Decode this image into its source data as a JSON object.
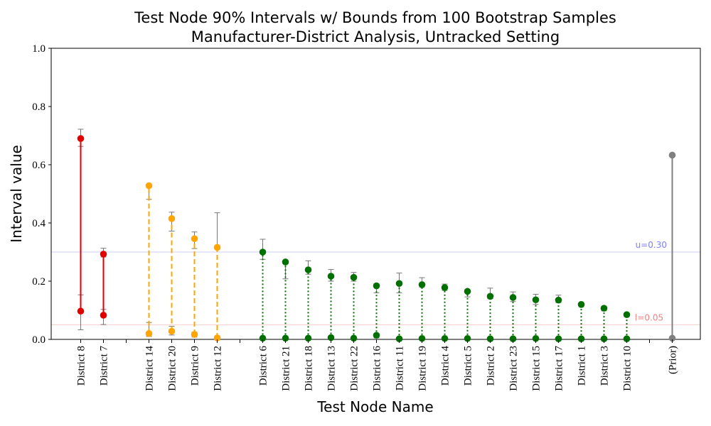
{
  "chart_data": {
    "type": "interval",
    "title_line1": "Test Node 90% Intervals w/ Bounds from 100 Bootstrap Samples",
    "title_line2": "Manufacturer-District Analysis, Untracked Setting",
    "xlabel": "Test Node Name",
    "ylabel": "Interval value",
    "ylim": [
      0,
      1
    ],
    "yticks": [
      "0.0",
      "0.2",
      "0.4",
      "0.6",
      "0.8",
      "1.0"
    ],
    "upper_ref": {
      "value": 0.3,
      "label": "u=0.30",
      "color": "#7f7fff"
    },
    "lower_ref": {
      "value": 0.05,
      "label": "l=0.05",
      "color": "#f08080"
    },
    "groups": [
      {
        "color": "#e00000",
        "linestyle": "solid",
        "items": [
          {
            "name": "District 8",
            "lower": 0.097,
            "upper": 0.69,
            "lower_err": [
              0.033,
              0.153
            ],
            "upper_err": [
              0.663,
              0.722
            ]
          },
          {
            "name": "District 7",
            "lower": 0.083,
            "upper": 0.293,
            "lower_err": [
              0.051,
              0.103
            ],
            "upper_err": [
              0.283,
              0.313
            ]
          }
        ]
      },
      {
        "color": "#ffa500",
        "linestyle": "dashed",
        "items": [
          {
            "name": "District 14",
            "lower": 0.02,
            "upper": 0.528,
            "lower_err": [
              0.01,
              0.058
            ],
            "upper_err": [
              0.481,
              0.532
            ]
          },
          {
            "name": "District 20",
            "lower": 0.028,
            "upper": 0.415,
            "lower_err": [
              0.015,
              0.045
            ],
            "upper_err": [
              0.372,
              0.437
            ]
          },
          {
            "name": "District 9",
            "lower": 0.017,
            "upper": 0.346,
            "lower_err": [
              0.008,
              0.025
            ],
            "upper_err": [
              0.312,
              0.369
            ]
          },
          {
            "name": "District 12",
            "lower": 0.005,
            "upper": 0.316,
            "lower_err": [
              0.0,
              0.01
            ],
            "upper_err": [
              0.316,
              0.435
            ]
          }
        ]
      },
      {
        "color": "#007000",
        "linestyle": "dotted",
        "items": [
          {
            "name": "District 6",
            "lower": 0.004,
            "upper": 0.3,
            "lower_err": [
              0.0,
              0.008
            ],
            "upper_err": [
              0.275,
              0.344
            ]
          },
          {
            "name": "District 21",
            "lower": 0.004,
            "upper": 0.266,
            "lower_err": [
              0.0,
              0.008
            ],
            "upper_err": [
              0.208,
              0.27
            ]
          },
          {
            "name": "District 18",
            "lower": 0.004,
            "upper": 0.239,
            "lower_err": [
              0.0,
              0.008
            ],
            "upper_err": [
              0.224,
              0.27
            ]
          },
          {
            "name": "District 13",
            "lower": 0.006,
            "upper": 0.217,
            "lower_err": [
              0.0,
              0.01
            ],
            "upper_err": [
              0.2,
              0.24
            ]
          },
          {
            "name": "District 22",
            "lower": 0.004,
            "upper": 0.213,
            "lower_err": [
              0.0,
              0.008
            ],
            "upper_err": [
              0.2,
              0.23
            ]
          },
          {
            "name": "District 16",
            "lower": 0.014,
            "upper": 0.184,
            "lower_err": [
              0.005,
              0.02
            ],
            "upper_err": [
              0.16,
              0.19
            ]
          },
          {
            "name": "District 11",
            "lower": 0.002,
            "upper": 0.192,
            "lower_err": [
              0.0,
              0.006
            ],
            "upper_err": [
              0.16,
              0.228
            ]
          },
          {
            "name": "District 19",
            "lower": 0.003,
            "upper": 0.188,
            "lower_err": [
              0.0,
              0.006
            ],
            "upper_err": [
              0.18,
              0.212
            ]
          },
          {
            "name": "District 4",
            "lower": 0.003,
            "upper": 0.178,
            "lower_err": [
              0.0,
              0.006
            ],
            "upper_err": [
              0.168,
              0.19
            ]
          },
          {
            "name": "District 5",
            "lower": 0.003,
            "upper": 0.165,
            "lower_err": [
              0.0,
              0.006
            ],
            "upper_err": [
              0.146,
              0.168
            ]
          },
          {
            "name": "District 2",
            "lower": 0.002,
            "upper": 0.148,
            "lower_err": [
              0.0,
              0.005
            ],
            "upper_err": [
              0.14,
              0.176
            ]
          },
          {
            "name": "District 23",
            "lower": 0.002,
            "upper": 0.144,
            "lower_err": [
              0.0,
              0.005
            ],
            "upper_err": [
              0.13,
              0.163
            ]
          },
          {
            "name": "District 15",
            "lower": 0.003,
            "upper": 0.136,
            "lower_err": [
              0.0,
              0.006
            ],
            "upper_err": [
              0.12,
              0.155
            ]
          },
          {
            "name": "District 17",
            "lower": 0.002,
            "upper": 0.135,
            "lower_err": [
              0.0,
              0.005
            ],
            "upper_err": [
              0.126,
              0.152
            ]
          },
          {
            "name": "District 1",
            "lower": 0.002,
            "upper": 0.12,
            "lower_err": [
              0.0,
              0.005
            ],
            "upper_err": [
              0.112,
              0.123
            ]
          },
          {
            "name": "District 3",
            "lower": 0.002,
            "upper": 0.107,
            "lower_err": [
              0.0,
              0.005
            ],
            "upper_err": [
              0.098,
              0.11
            ]
          },
          {
            "name": "District 10",
            "lower": 0.002,
            "upper": 0.085,
            "lower_err": [
              0.0,
              0.005
            ],
            "upper_err": [
              0.078,
              0.088
            ]
          }
        ]
      },
      {
        "color": "#808080",
        "linestyle": "solid",
        "items": [
          {
            "name": "(Prior)",
            "lower": 0.004,
            "upper": 0.633,
            "lower_err": null,
            "upper_err": null
          }
        ]
      }
    ],
    "grid": false
  }
}
